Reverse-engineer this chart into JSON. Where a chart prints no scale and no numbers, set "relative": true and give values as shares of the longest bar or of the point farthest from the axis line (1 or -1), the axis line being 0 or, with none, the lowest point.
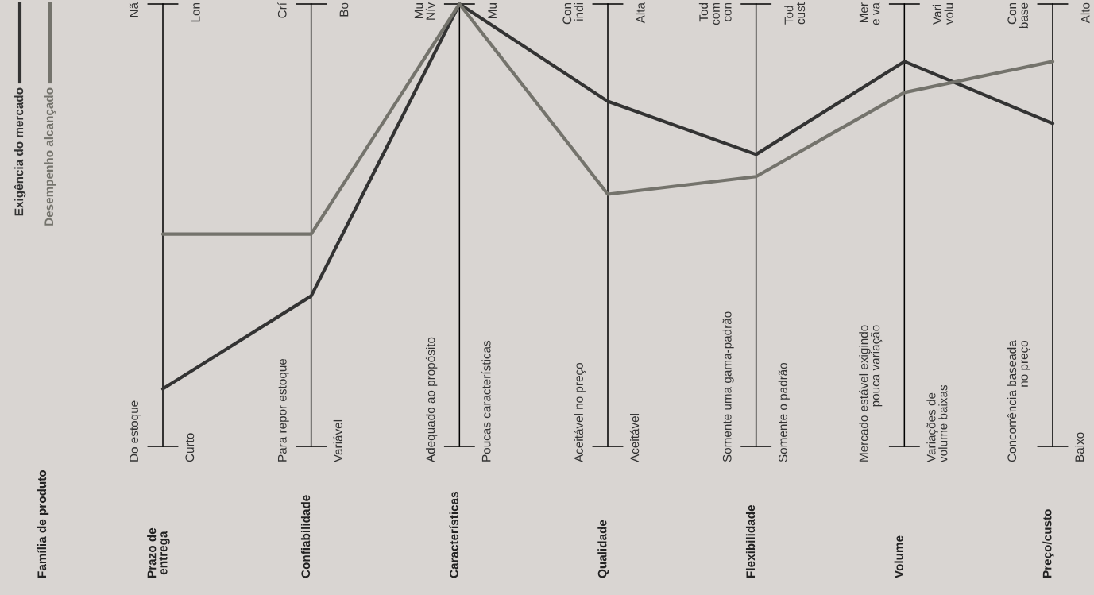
{
  "chart_data": {
    "type": "line",
    "relative": true,
    "title": "Família de produto",
    "legend": "top left",
    "grid": "x",
    "categories": [
      "Prazo de\nentrega",
      "Confiabilidade",
      "Características",
      "Qualidade",
      "Flexibilidade",
      "Volume",
      "Preço/custo"
    ],
    "series": [
      {
        "name": "Exigência do mercado",
        "color": "#333333",
        "values": [
          0.13,
          0.34,
          1.0,
          0.78,
          0.66,
          0.87,
          0.73
        ]
      },
      {
        "name": "Desempenho alcançado",
        "color": "#74736c",
        "values": [
          0.48,
          0.48,
          1.0,
          0.57,
          0.61,
          0.8,
          0.87
        ]
      }
    ],
    "annotations": [
      "Do estoque",
      "Curto",
      "Nã",
      "Lon",
      "Para repor estoque",
      "Variável",
      "Crí",
      "Bo",
      "Adequado ao propósito",
      "Poucas características",
      "Mu\nNív",
      "Mu",
      "Aceitável no preço",
      "Aceitável",
      "Con\nindi",
      "Alta",
      "Somente uma gama-padrão",
      "Somente o padrão",
      "Tod\ncom\ncon",
      "Tod\ncust",
      "Mercado estável exigindo\npouca variação",
      "Variações de\nvolume baixas",
      "Mer\ne va",
      "Vari\nvolu",
      "Concorrência baseada\nno preço",
      "Baixo",
      "Con\nbase",
      "Alto"
    ]
  }
}
